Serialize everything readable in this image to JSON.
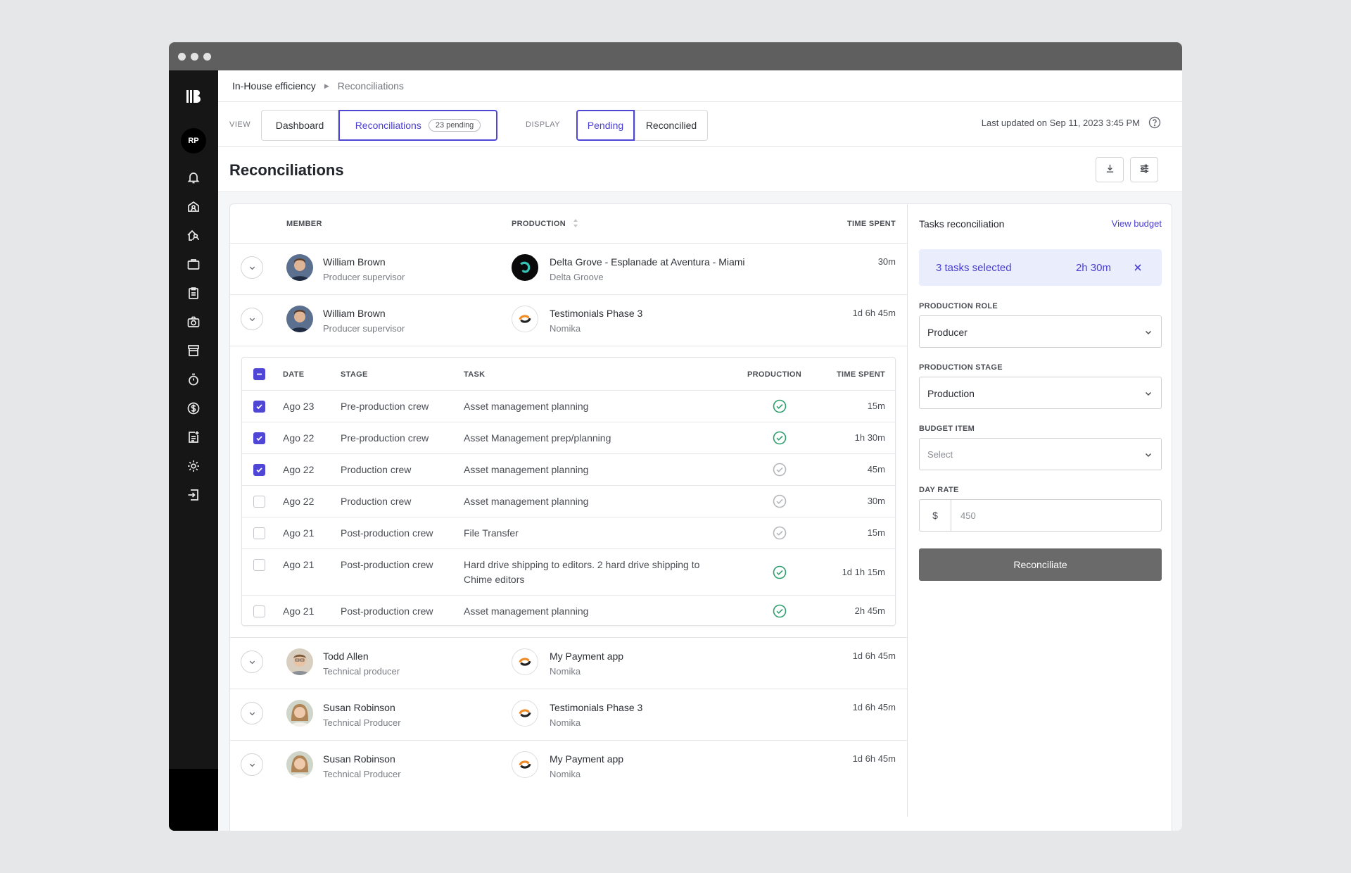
{
  "sidebar": {
    "user_initials": "RP"
  },
  "breadcrumb": {
    "parent": "In-House efficiency",
    "current": "Reconciliations"
  },
  "view_bar": {
    "view_label": "VIEW",
    "view_tabs": [
      {
        "label": "Dashboard"
      },
      {
        "label": "Reconciliations",
        "badge": "23 pending"
      }
    ],
    "display_label": "DISPLAY",
    "display_tabs": [
      {
        "label": "Pending"
      },
      {
        "label": "Reconcilied"
      }
    ],
    "last_updated": "Last updated on Sep 11, 2023 3:45 PM"
  },
  "page": {
    "title": "Reconciliations"
  },
  "table": {
    "headers": {
      "member": "MEMBER",
      "production": "PRODUCTION",
      "time_spent": "TIME SPENT"
    },
    "rows": [
      {
        "name": "William Brown",
        "role": "Producer supervisor",
        "production": "Delta Grove - Esplanade at Aventura - Miami",
        "client": "Delta Groove",
        "time": "30m"
      },
      {
        "name": "William Brown",
        "role": "Producer supervisor",
        "production": "Testimonials Phase 3",
        "client": "Nomika",
        "time": "1d 6h 45m"
      },
      {
        "name": "Todd Allen",
        "role": "Technical producer",
        "production": "My Payment app",
        "client": "Nomika",
        "time": "1d 6h 45m"
      },
      {
        "name": "Susan Robinson",
        "role": "Technical Producer",
        "production": "Testimonials Phase 3",
        "client": "Nomika",
        "time": "1d 6h 45m"
      },
      {
        "name": "Susan Robinson",
        "role": "Technical Producer",
        "production": "My Payment app",
        "client": "Nomika",
        "time": "1d 6h 45m"
      }
    ]
  },
  "subtable": {
    "headers": {
      "date": "DATE",
      "stage": "STAGE",
      "task": "TASK",
      "production": "PRODUCTION",
      "time_spent": "TIME SPENT"
    },
    "rows": [
      {
        "date": "Ago 23",
        "stage": "Pre-production crew",
        "task": "Asset management planning",
        "time": "15m"
      },
      {
        "date": "Ago 22",
        "stage": "Pre-production crew",
        "task": "Asset Management prep/planning",
        "time": "1h 30m"
      },
      {
        "date": "Ago 22",
        "stage": "Production crew",
        "task": "Asset management planning",
        "time": "45m"
      },
      {
        "date": "Ago 22",
        "stage": "Production crew",
        "task": "Asset management planning",
        "time": "30m"
      },
      {
        "date": "Ago 21",
        "stage": "Post-production crew",
        "task": "File Transfer",
        "time": "15m"
      },
      {
        "date": "Ago 21",
        "stage": "Post-production crew",
        "task": "Hard drive shipping to editors. 2 hard drive shipping to Chime editors",
        "time": "1d 1h 15m"
      },
      {
        "date": "Ago 21",
        "stage": "Post-production crew",
        "task": "Asset management planning",
        "time": "2h 45m"
      }
    ]
  },
  "panel": {
    "title": "Tasks reconciliation",
    "view_budget": "View budget",
    "selected_count": "3 tasks selected",
    "selected_time": "2h 30m",
    "production_role_label": "PRODUCTION ROLE",
    "production_role_value": "Producer",
    "production_stage_label": "PRODUCTION STAGE",
    "production_stage_value": "Production",
    "budget_item_label": "BUDGET ITEM",
    "budget_item_value": "Select",
    "day_rate_label": "DAY RATE",
    "day_rate_prefix": "$",
    "day_rate_placeholder": "450",
    "reconcile_button": "Reconciliate"
  },
  "colors": {
    "accent": "#5046d6",
    "sidebar": "#161616",
    "status_green": "#2e9e6e",
    "status_gray": "#b5b7bc"
  }
}
